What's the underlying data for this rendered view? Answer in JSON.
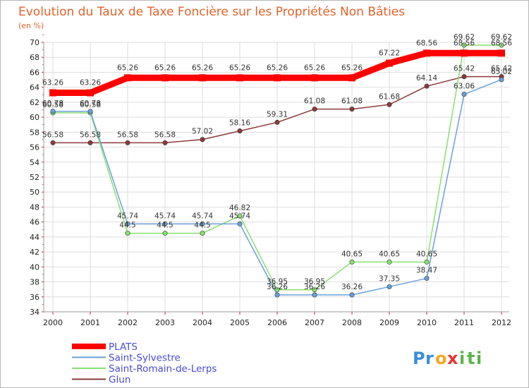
{
  "chart_data": {
    "type": "line",
    "title": "Evolution du Taux de Taxe Foncière sur les Propriétés Non Bâties",
    "unit_label": "(en %)",
    "xlabel": "",
    "ylabel": "",
    "categories": [
      "2000",
      "2001",
      "2002",
      "2003",
      "2004",
      "2005",
      "2006",
      "2007",
      "2008",
      "2009",
      "2010",
      "2011",
      "2012"
    ],
    "ylim": [
      34,
      70
    ],
    "ytick_step": 2,
    "grid": true,
    "series": [
      {
        "name": "PLATS",
        "color": "#ff0000",
        "values": [
          63.26,
          63.26,
          65.26,
          65.26,
          65.26,
          65.26,
          65.26,
          65.26,
          65.26,
          67.22,
          68.56,
          68.56,
          68.56
        ],
        "labels": [
          "63.26",
          "63.26",
          "65.26",
          "65.26",
          "65.26",
          "65.26",
          "65.26",
          "65.26",
          "65.26",
          "67.22",
          "68.56",
          "68.56",
          "68.56"
        ]
      },
      {
        "name": "Saint-Sylvestre",
        "color": "#6aa0d8",
        "values": [
          60.78,
          60.78,
          45.74,
          45.74,
          45.74,
          45.74,
          36.26,
          36.26,
          36.26,
          37.35,
          38.47,
          63.06,
          65.02
        ],
        "labels": [
          "60.78",
          "60.78",
          "45.74",
          "45.74",
          "45.74",
          "45.74",
          "36.26",
          "36.26",
          "36.26",
          "37.35",
          "38.47",
          "63.06",
          "65.02"
        ]
      },
      {
        "name": "Saint-Romain-de-Lerps",
        "color": "#88e070",
        "values": [
          60.58,
          60.58,
          44.5,
          44.5,
          44.5,
          46.82,
          36.95,
          36.95,
          40.65,
          40.65,
          40.65,
          69.62,
          69.62
        ],
        "labels": [
          "60.58",
          "60.58",
          "44.5",
          "44.5",
          "44.5",
          "46.82",
          "36.95",
          "36.95",
          "40.65",
          "40.65",
          "40.65",
          "69.62",
          "69.62"
        ]
      },
      {
        "name": "Glun",
        "color": "#8b3a3a",
        "values": [
          56.58,
          56.58,
          56.58,
          56.58,
          57.02,
          58.16,
          59.31,
          61.08,
          61.08,
          61.68,
          64.14,
          65.42,
          65.42
        ],
        "labels": [
          "56.58",
          "56.58",
          "56.58",
          "56.58",
          "57.02",
          "58.16",
          "59.31",
          "61.08",
          "61.08",
          "61.68",
          "64.14",
          "65.42",
          "65.42"
        ]
      }
    ],
    "legend_position": "bottom-left"
  },
  "logo": {
    "letters": [
      "P",
      "r",
      "o",
      "x",
      "i",
      "t",
      "i"
    ],
    "colors": [
      "#3a8ed8",
      "#3a8ed8",
      "#f5a623",
      "#e8342a",
      "#5ab54a",
      "#5ab54a",
      "#5ab54a"
    ]
  }
}
